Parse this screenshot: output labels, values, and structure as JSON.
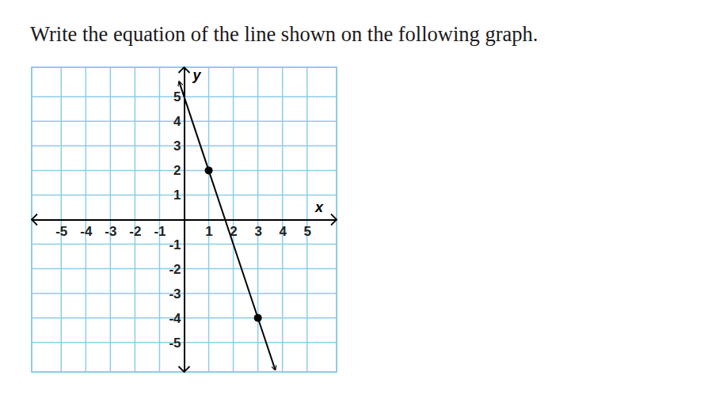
{
  "chart_data": {
    "type": "line",
    "title": "Write the equation of the line shown on the following graph.",
    "xlabel": "x",
    "ylabel": "y",
    "xlim": [
      -6.2,
      6.2
    ],
    "ylim": [
      -6.2,
      6.2
    ],
    "xticks": [
      -5,
      -4,
      -3,
      -2,
      -1,
      1,
      2,
      3,
      4,
      5
    ],
    "yticks": [
      -5,
      -4,
      -3,
      -2,
      -1,
      1,
      2,
      3,
      4,
      5
    ],
    "grid": true,
    "series": [
      {
        "type": "line",
        "color": "#000000",
        "line_style": "solid",
        "x": [
          -0.2,
          1,
          3,
          3.7
        ],
        "values": [
          5.6,
          2,
          -4,
          -6.1
        ]
      },
      {
        "type": "scatter",
        "color": "#000000",
        "marker": "circle",
        "x": [
          1,
          3
        ],
        "values": [
          2,
          -4
        ]
      }
    ]
  }
}
